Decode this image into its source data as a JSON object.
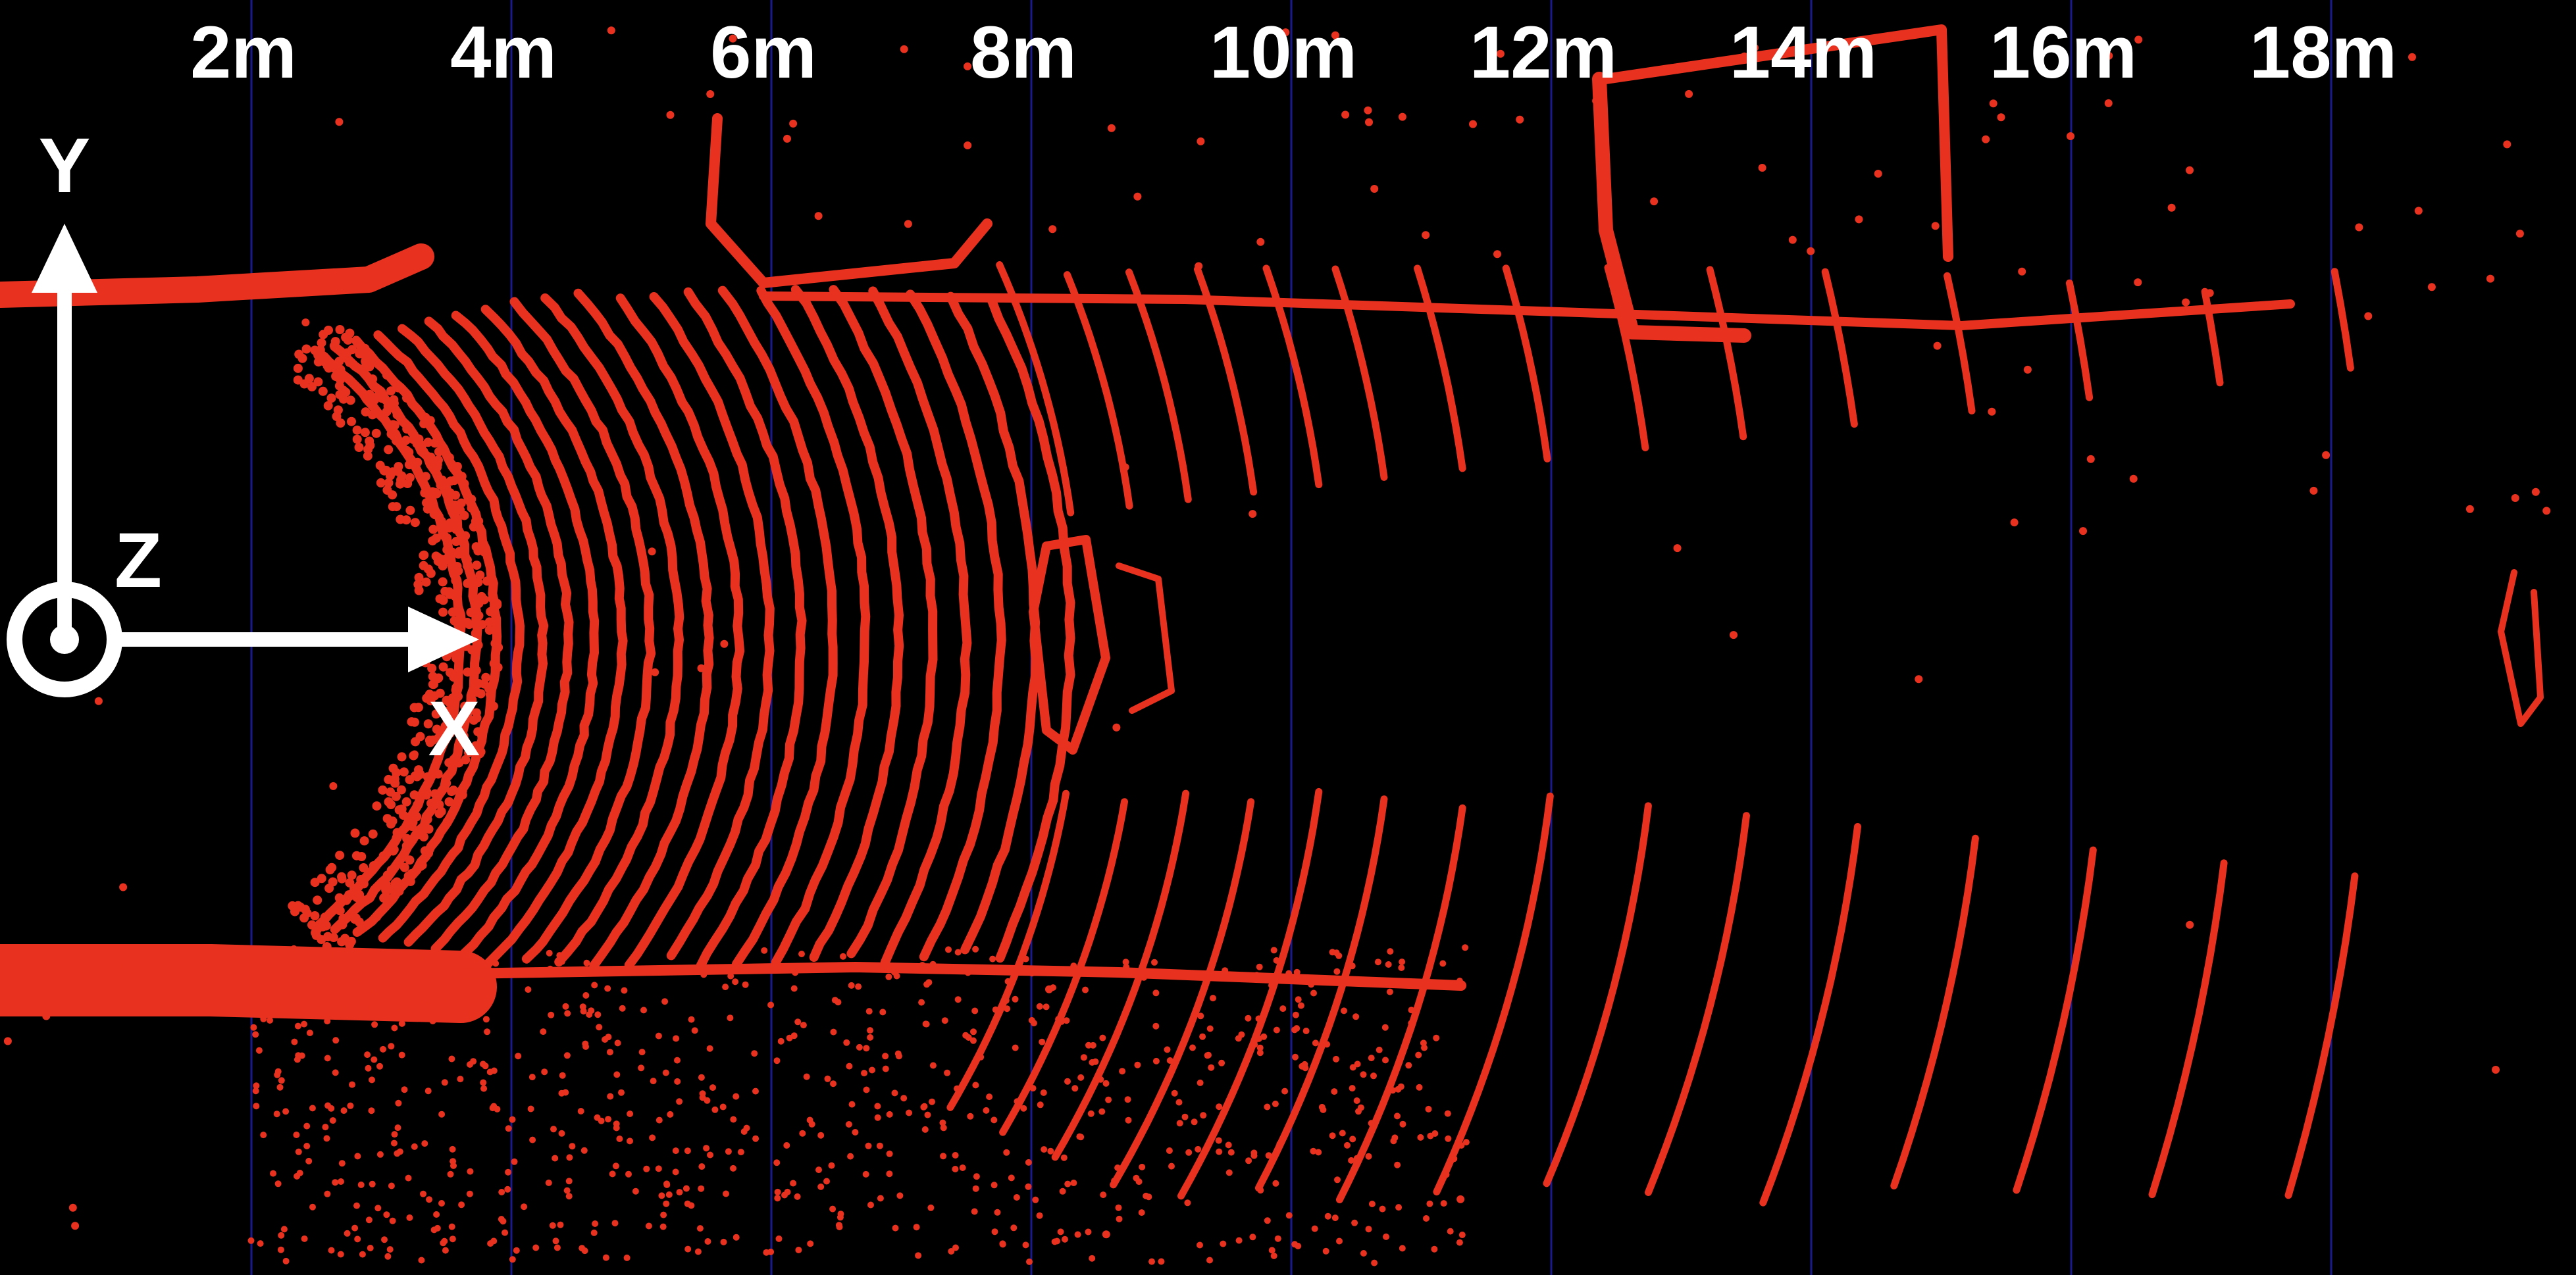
{
  "distance_markers": [
    {
      "label": "2m",
      "meters": 2
    },
    {
      "label": "4m",
      "meters": 4
    },
    {
      "label": "6m",
      "meters": 6
    },
    {
      "label": "8m",
      "meters": 8
    },
    {
      "label": "10m",
      "meters": 10
    },
    {
      "label": "12m",
      "meters": 12
    },
    {
      "label": "14m",
      "meters": 14
    },
    {
      "label": "16m",
      "meters": 16
    },
    {
      "label": "18m",
      "meters": 18
    }
  ],
  "axes": {
    "x_label": "X",
    "y_label": "Y",
    "z_label": "Z"
  },
  "colors": {
    "background": "#000000",
    "points": "#e8321f",
    "gridlines": "#1a1a8c",
    "axes_glyph": "#ffffff"
  }
}
